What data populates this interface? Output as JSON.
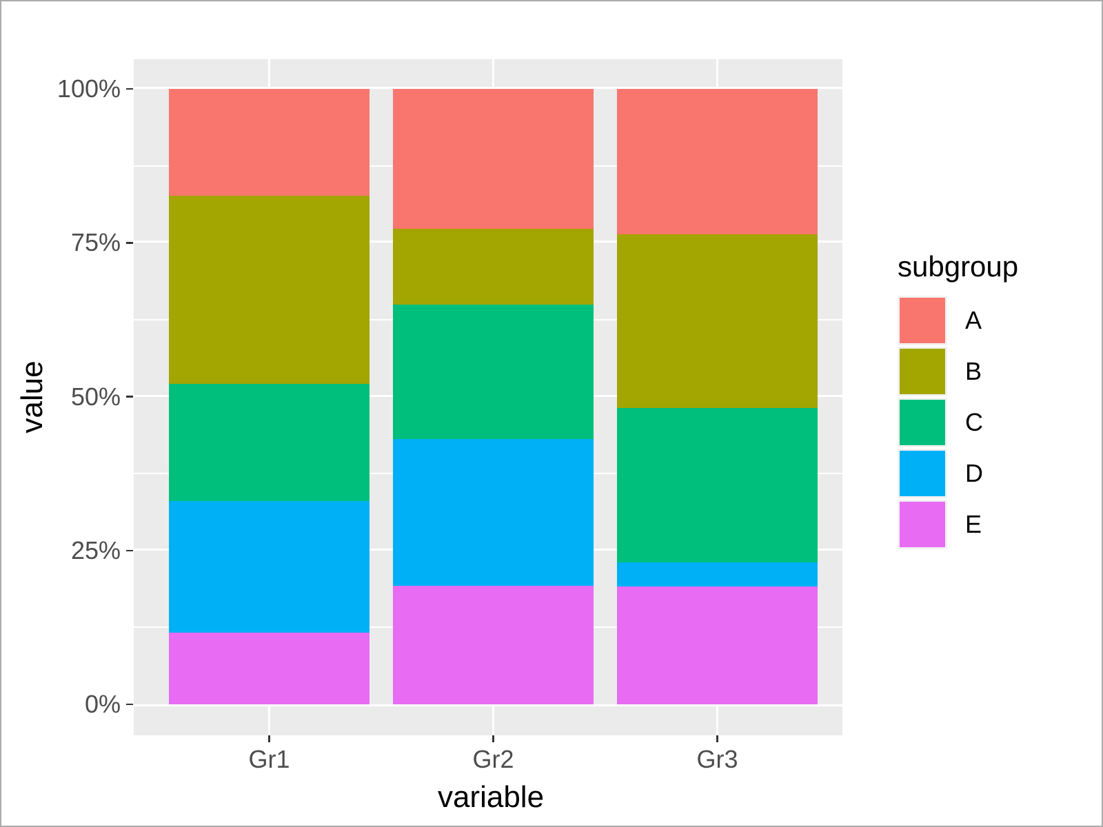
{
  "figure": {
    "background": "#ffffff",
    "outer_border_color": "#ababab",
    "panel_background": "#ebebeb",
    "grid_color": "#ffffff",
    "tick_mark_color": "#333333",
    "tick_label_color": "#4d4d4d",
    "axis_title_color": "#000000",
    "legend_key_background": "#f2f2f2"
  },
  "chart_data": {
    "type": "bar",
    "subtype": "percent-stacked-vertical",
    "title": "",
    "xlabel": "variable",
    "ylabel": "value",
    "categories": [
      "Gr1",
      "Gr2",
      "Gr3"
    ],
    "series": [
      {
        "name": "A",
        "color": "#F8766D",
        "values": [
          17.4,
          22.7,
          23.6
        ]
      },
      {
        "name": "B",
        "color": "#A3A500",
        "values": [
          30.5,
          12.4,
          28.2
        ]
      },
      {
        "name": "C",
        "color": "#00BF7D",
        "values": [
          19.1,
          21.8,
          25.1
        ]
      },
      {
        "name": "D",
        "color": "#00B0F6",
        "values": [
          21.3,
          23.8,
          3.9
        ]
      },
      {
        "name": "E",
        "color": "#E76BF3",
        "values": [
          11.7,
          19.3,
          19.2
        ]
      }
    ],
    "stack_order_bottom_to_top": [
      "E",
      "D",
      "C",
      "B",
      "A"
    ],
    "ylim": [
      0,
      100
    ],
    "y_tick_values": [
      0,
      25,
      50,
      75,
      100
    ],
    "y_tick_labels": [
      "0%",
      "25%",
      "50%",
      "75%",
      "100%"
    ],
    "y_minor_gridlines": [
      12.5,
      37.5,
      62.5,
      87.5
    ],
    "grid": "major-and-minor-horizontal, major-vertical",
    "legend_title": "subgroup",
    "legend_position": "right",
    "legend_labels": [
      "A",
      "B",
      "C",
      "D",
      "E"
    ]
  }
}
